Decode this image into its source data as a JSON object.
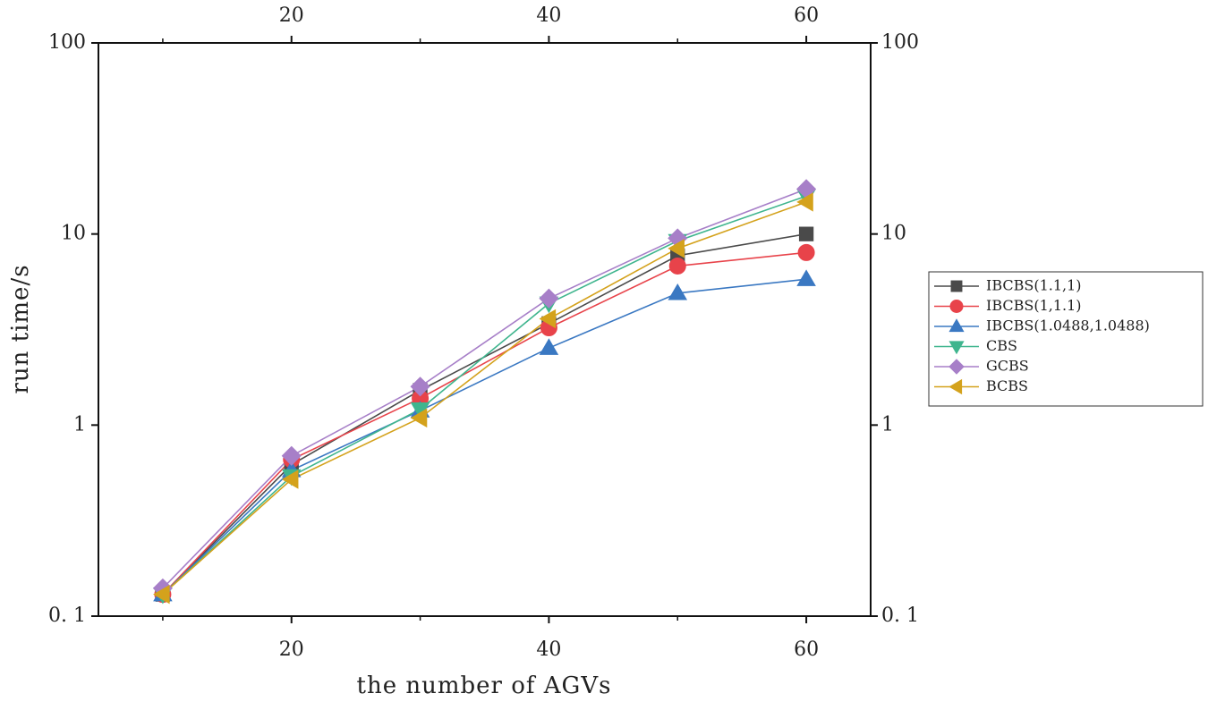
{
  "chart_data": {
    "type": "line",
    "x_label": "the number of AGVs",
    "y_label": "run time/s",
    "x": [
      10,
      20,
      30,
      40,
      50,
      60
    ],
    "xlim": [
      5,
      65
    ],
    "xticks": [
      20,
      40,
      60
    ],
    "xminor_ticks": [
      10,
      30,
      50
    ],
    "ylim": [
      0.1,
      100
    ],
    "yscale": "log",
    "yticks": [
      {
        "value": 0.1,
        "label": "0. 1"
      },
      1,
      10,
      100
    ],
    "mirror_axes": true,
    "legend": "right",
    "series": [
      {
        "name": "IBCBS(1.1,1)",
        "color": "#4a4a4a",
        "marker": "square",
        "values": [
          0.13,
          0.62,
          1.52,
          3.4,
          7.7,
          10
        ]
      },
      {
        "name": "IBCBS(1,1.1)",
        "color": "#e8434a",
        "marker": "circle",
        "values": [
          0.13,
          0.66,
          1.38,
          3.23,
          6.8,
          8.0
        ]
      },
      {
        "name": "IBCBS(1.0488,1.0488)",
        "color": "#3a78c2",
        "marker": "triangle-up",
        "values": [
          0.13,
          0.58,
          1.19,
          2.53,
          4.9,
          5.8
        ]
      },
      {
        "name": "CBS",
        "color": "#3fb58e",
        "marker": "triangle-down",
        "values": [
          0.13,
          0.54,
          1.21,
          4.33,
          9.2,
          15.8
        ]
      },
      {
        "name": "GCBS",
        "color": "#a77fc8",
        "marker": "diamond",
        "values": [
          0.14,
          0.69,
          1.59,
          4.6,
          9.5,
          17.2
        ]
      },
      {
        "name": "BCBS",
        "color": "#d4a21c",
        "marker": "triangle-left",
        "values": [
          0.13,
          0.52,
          1.09,
          3.6,
          8.4,
          14.7
        ]
      }
    ]
  }
}
